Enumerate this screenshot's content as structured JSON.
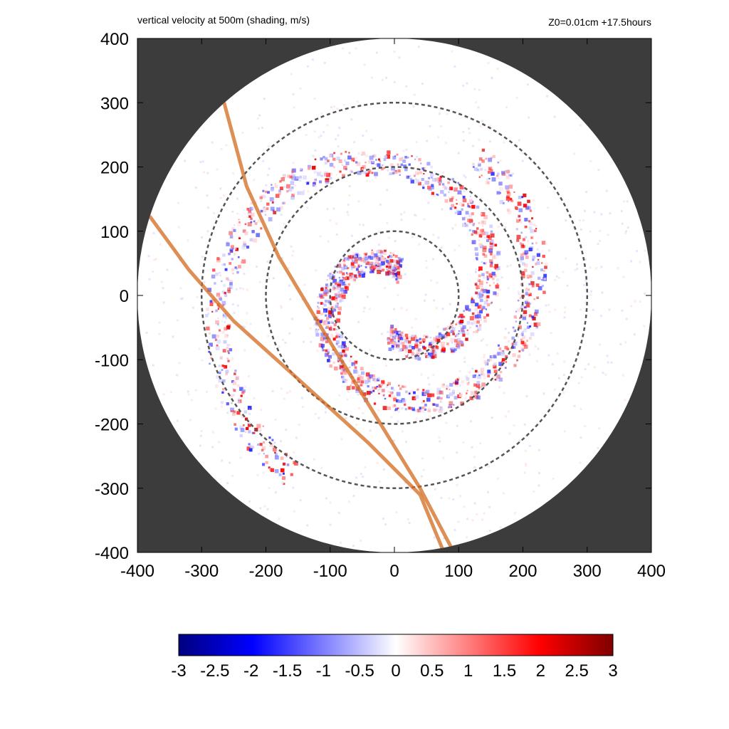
{
  "header": {
    "title": "vertical velocity at 500m (shading, m/s)",
    "info": "Z0=0.01cm  +17.5hours"
  },
  "colors": {
    "outside_domain": "#3c3c3c",
    "negative_strong": "#00007f",
    "negative": "#0000ff",
    "zero": "#ffffff",
    "positive": "#ff0000",
    "positive_strong": "#7f0000",
    "track": "#d2691e",
    "range_rings": "#555555"
  },
  "chart_data": {
    "type": "heatmap",
    "title": "vertical velocity at 500m (shading, m/s)",
    "xlim": [
      -400,
      400
    ],
    "ylim": [
      -400,
      400
    ],
    "x_ticks": [
      -400,
      -300,
      -200,
      -100,
      0,
      100,
      200,
      300,
      400
    ],
    "y_ticks": [
      -400,
      -300,
      -200,
      -100,
      0,
      100,
      200,
      300,
      400
    ],
    "domain_radius": 400,
    "range_rings_radius": [
      100,
      200,
      300
    ],
    "tracks": [
      {
        "points": [
          [
            -265,
            300
          ],
          [
            -230,
            170
          ],
          [
            -180,
            60
          ],
          [
            -120,
            -40
          ],
          [
            -40,
            -170
          ],
          [
            40,
            -300
          ],
          [
            90,
            -395
          ]
        ]
      },
      {
        "points": [
          [
            -380,
            122
          ],
          [
            -320,
            40
          ],
          [
            -250,
            -40
          ],
          [
            -150,
            -130
          ],
          [
            -40,
            -230
          ],
          [
            40,
            -310
          ],
          [
            75,
            -395
          ]
        ]
      }
    ],
    "spiral_bands": [
      {
        "r_start": 60,
        "r_end": 320,
        "theta_start": -100,
        "theta_end": 240
      },
      {
        "r_start": 40,
        "r_end": 250,
        "theta_start": 80,
        "theta_end": 420
      }
    ],
    "colorbar": {
      "min": -3,
      "max": 3,
      "ticks": [
        "-3",
        "-2.5",
        "-2",
        "-1.5",
        "-1",
        "-0.5",
        "0",
        "0.5",
        "1",
        "1.5",
        "2",
        "2.5",
        "3"
      ]
    }
  }
}
